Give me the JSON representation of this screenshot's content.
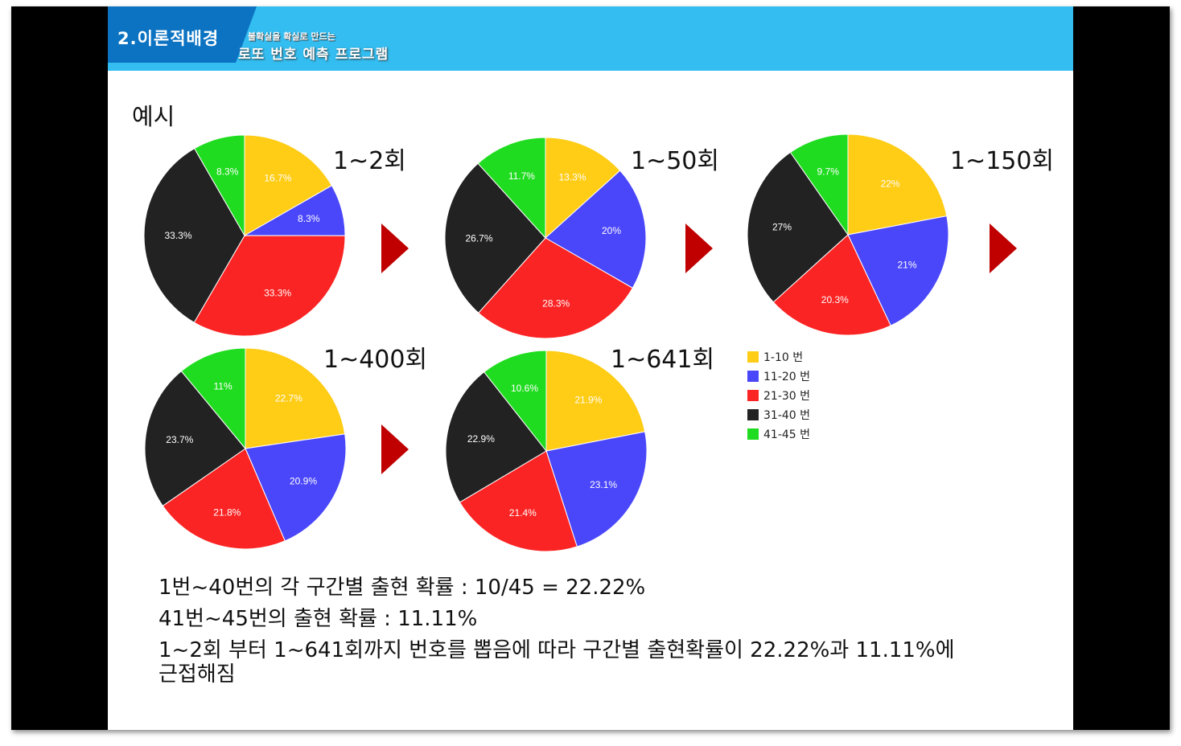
{
  "header": {
    "section_title": "2.이론적배경",
    "subtitle_small": "불확실을 확실로 만드는",
    "subtitle_main": "로또 번호 예측 프로그램"
  },
  "example_label": "예시",
  "colors": {
    "header_bg": "#33bdf0",
    "header_tab": "#0c73c2",
    "arrow": "#c00000"
  },
  "legend": [
    {
      "label": "1-10 번",
      "color": "#ffcc16"
    },
    {
      "label": "11-20 번",
      "color": "#4a47fb"
    },
    {
      "label": "21-30 번",
      "color": "#fb2424"
    },
    {
      "label": "31-40 번",
      "color": "#222222"
    },
    {
      "label": "41-45 번",
      "color": "#20dc20"
    }
  ],
  "chart_data": [
    {
      "type": "pie",
      "title": "1~2회",
      "slices": [
        {
          "category": "1-10 번",
          "value": 16.7,
          "label": "16.7%"
        },
        {
          "category": "11-20 번",
          "value": 8.3,
          "label": "8.3%"
        },
        {
          "category": "21-30 번",
          "value": 33.3,
          "label": "33.3%"
        },
        {
          "category": "31-40 번",
          "value": 33.3,
          "label": "33.3%"
        },
        {
          "category": "41-45 번",
          "value": 8.3,
          "label": "8.3%"
        }
      ]
    },
    {
      "type": "pie",
      "title": "1~50회",
      "slices": [
        {
          "category": "1-10 번",
          "value": 13.3,
          "label": "13.3%"
        },
        {
          "category": "11-20 번",
          "value": 20,
          "label": "20%"
        },
        {
          "category": "21-30 번",
          "value": 28.3,
          "label": "28.3%"
        },
        {
          "category": "31-40 번",
          "value": 26.7,
          "label": "26.7%"
        },
        {
          "category": "41-45 번",
          "value": 11.7,
          "label": "11.7%"
        }
      ]
    },
    {
      "type": "pie",
      "title": "1~150회",
      "slices": [
        {
          "category": "1-10 번",
          "value": 22,
          "label": "22%"
        },
        {
          "category": "11-20 번",
          "value": 21,
          "label": "21%"
        },
        {
          "category": "21-30 번",
          "value": 20.3,
          "label": "20.3%"
        },
        {
          "category": "31-40 번",
          "value": 27,
          "label": "27%"
        },
        {
          "category": "41-45 번",
          "value": 9.7,
          "label": "9.7%"
        }
      ]
    },
    {
      "type": "pie",
      "title": "1~400회",
      "slices": [
        {
          "category": "1-10 번",
          "value": 22.7,
          "label": "22.7%"
        },
        {
          "category": "11-20 번",
          "value": 20.9,
          "label": "20.9%"
        },
        {
          "category": "21-30 번",
          "value": 21.8,
          "label": "21.8%"
        },
        {
          "category": "31-40 번",
          "value": 23.7,
          "label": "23.7%"
        },
        {
          "category": "41-45 번",
          "value": 11,
          "label": "11%"
        }
      ]
    },
    {
      "type": "pie",
      "title": "1~641회",
      "slices": [
        {
          "category": "1-10 번",
          "value": 21.9,
          "label": "21.9%"
        },
        {
          "category": "11-20 번",
          "value": 23.1,
          "label": "23.1%"
        },
        {
          "category": "21-30 번",
          "value": 21.4,
          "label": "21.4%"
        },
        {
          "category": "31-40 번",
          "value": 22.9,
          "label": "22.9%"
        },
        {
          "category": "41-45 번",
          "value": 10.6,
          "label": "10.6%"
        }
      ]
    }
  ],
  "body_text": [
    "1번~40번의 각 구간별 출현 확률 : 10/45 = 22.22%",
    "41번~45번의 출현 확률 : 11.11%",
    "1~2회 부터 1~641회까지 번호를 뽑음에 따라 구간별 출현확률이 22.22%과 11.11%에",
    "근접해짐"
  ]
}
